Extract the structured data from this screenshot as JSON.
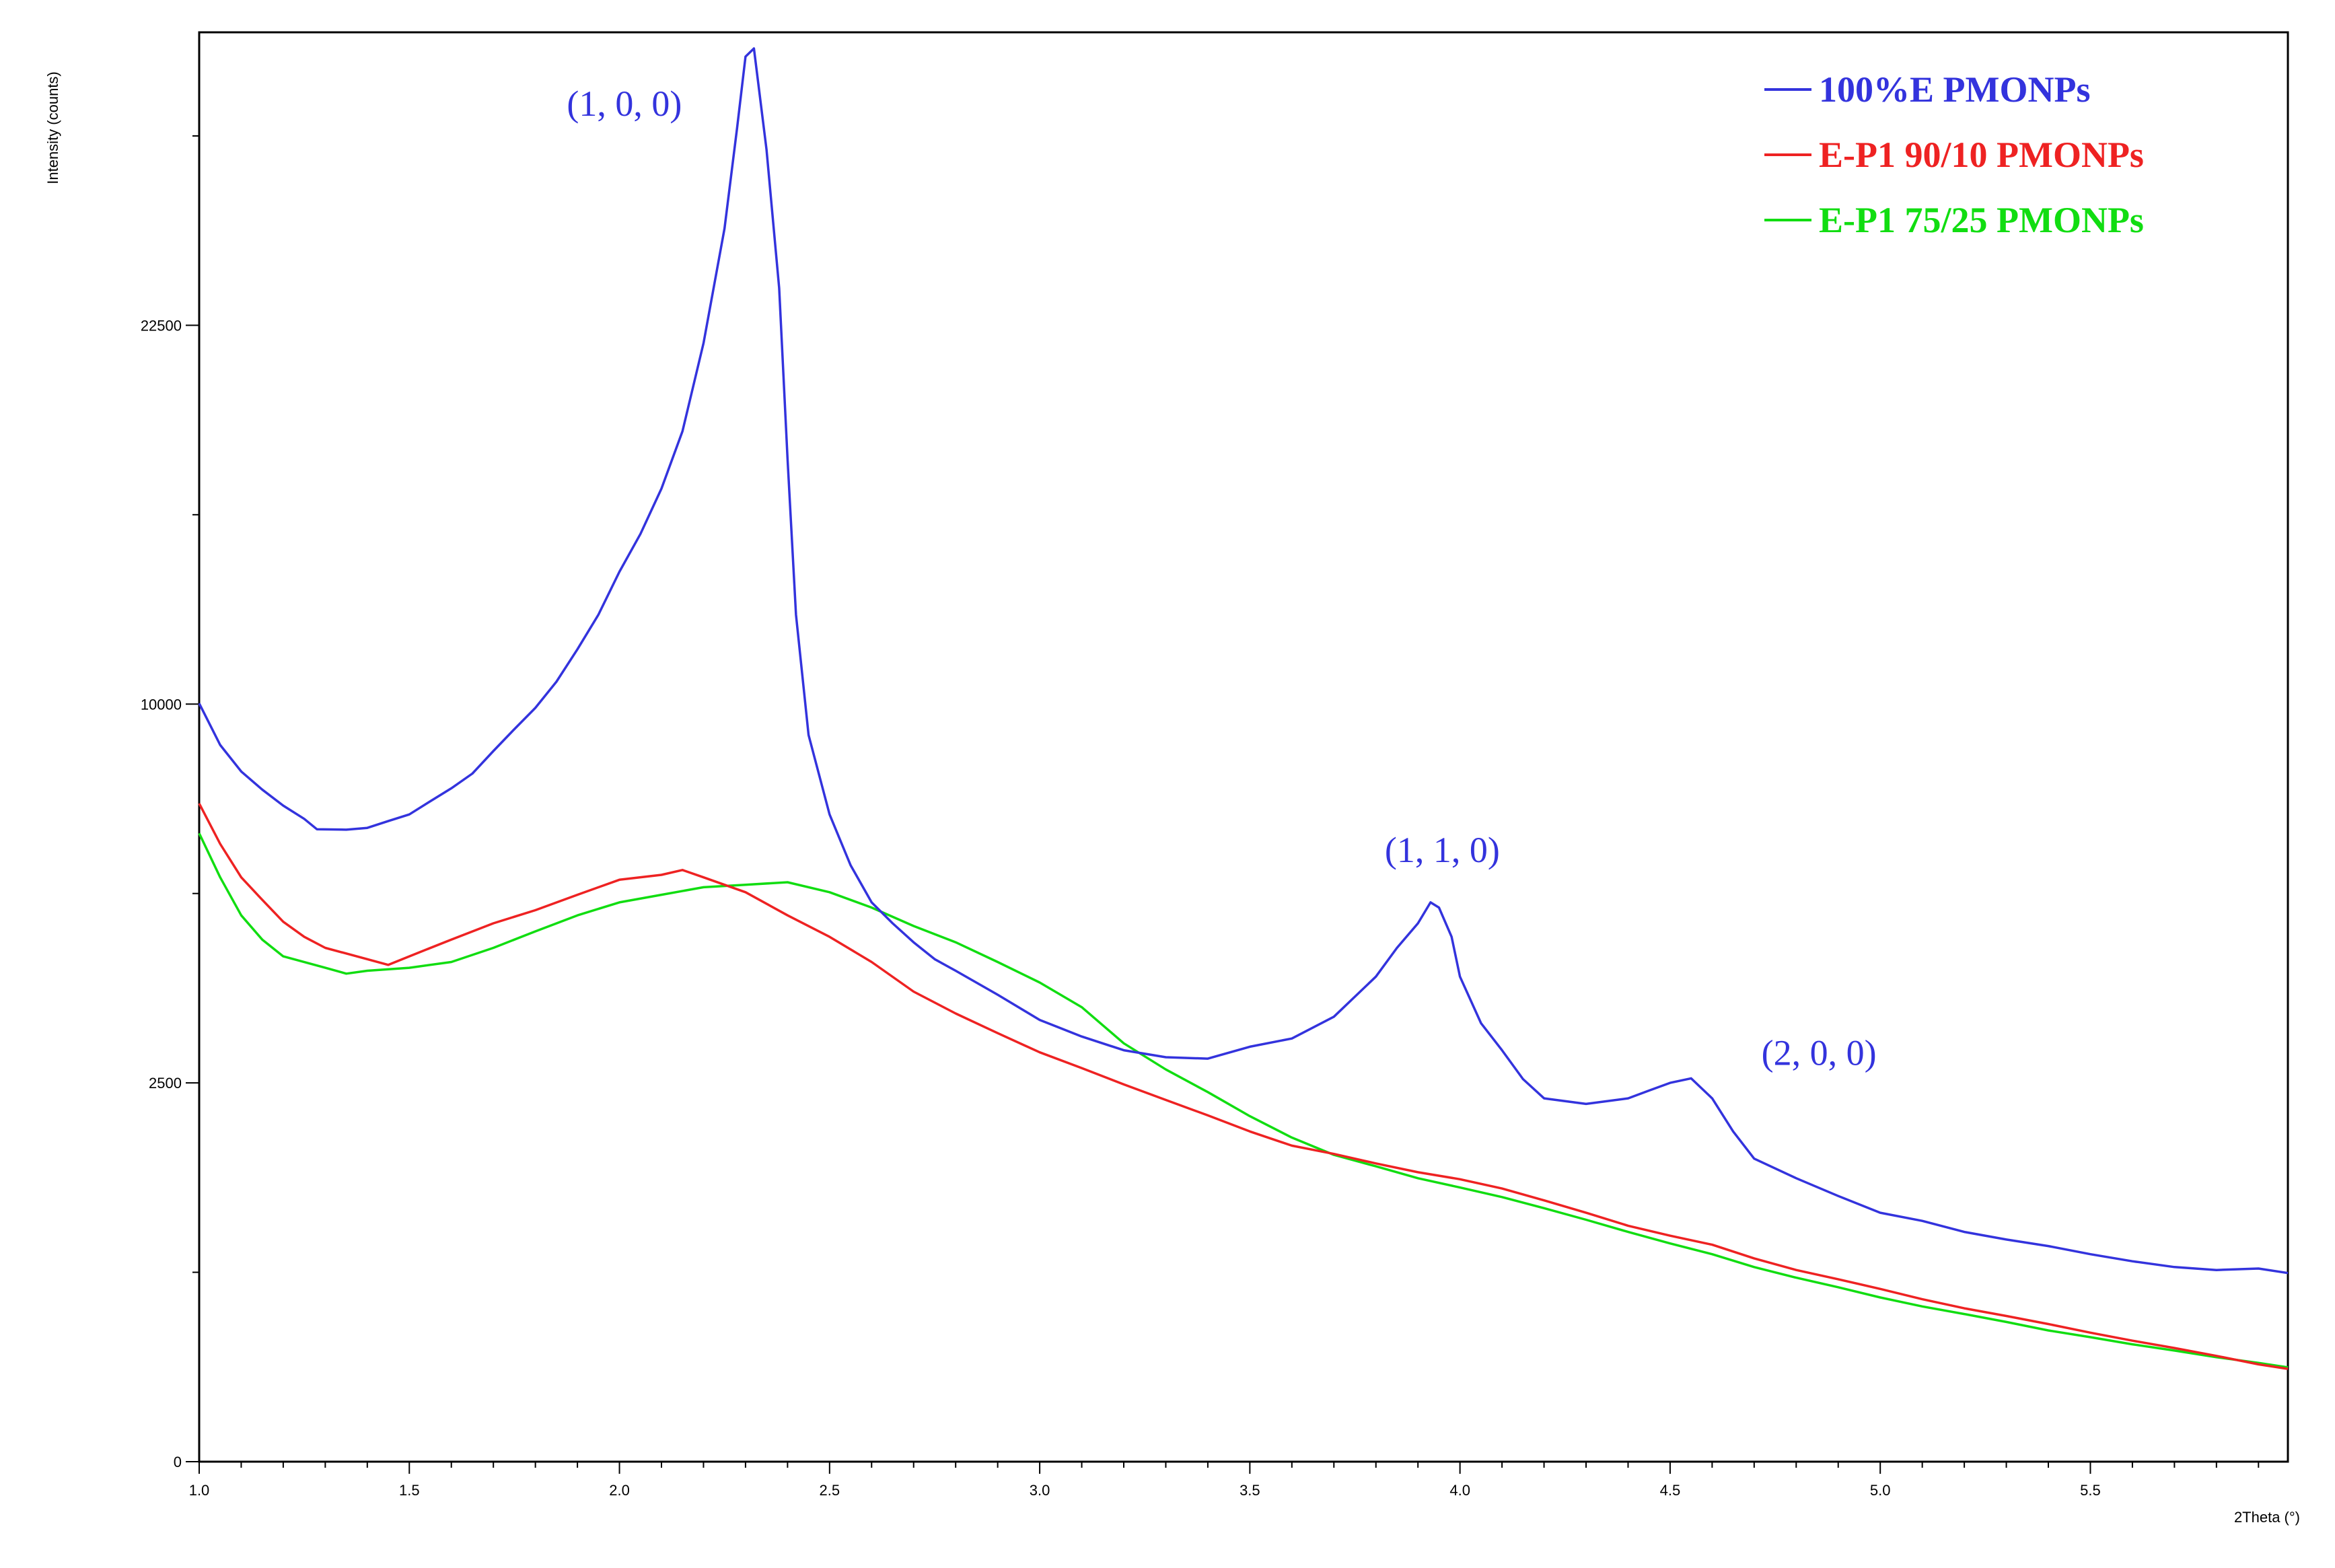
{
  "chart_data": {
    "type": "line",
    "title": "",
    "xlabel": "2Theta (°)",
    "ylabel": "Intensity (counts)",
    "xlim": [
      1.0,
      5.97
    ],
    "y_scale": "sqrt",
    "ylim": [
      0,
      35600
    ],
    "x_ticks": [
      1.0,
      1.5,
      2.0,
      2.5,
      3.0,
      3.5,
      4.0,
      4.5,
      5.0,
      5.5
    ],
    "x_tick_labels": [
      "1.0",
      "1.5",
      "2.0",
      "2.5",
      "3.0",
      "3.5",
      "4.0",
      "4.5",
      "5.0",
      "5.5"
    ],
    "y_ticks": [
      0,
      2500,
      10000,
      22500
    ],
    "y_tick_labels": [
      "0",
      "2500",
      "10000",
      "22500"
    ],
    "y_minor_ticks": [
      625,
      5625,
      15625,
      30625
    ],
    "grid": false,
    "legend_position": "top-right",
    "series": [
      {
        "name": "100%E PMONPs",
        "color": "#3333dd",
        "points": [
          [
            1.0,
            10020
          ],
          [
            1.05,
            8950
          ],
          [
            1.1,
            8300
          ],
          [
            1.15,
            7870
          ],
          [
            1.2,
            7500
          ],
          [
            1.25,
            7200
          ],
          [
            1.28,
            6970
          ],
          [
            1.35,
            6960
          ],
          [
            1.4,
            7000
          ],
          [
            1.45,
            7150
          ],
          [
            1.5,
            7300
          ],
          [
            1.55,
            7600
          ],
          [
            1.6,
            7900
          ],
          [
            1.65,
            8250
          ],
          [
            1.7,
            8800
          ],
          [
            1.75,
            9350
          ],
          [
            1.8,
            9900
          ],
          [
            1.85,
            10600
          ],
          [
            1.9,
            11500
          ],
          [
            1.95,
            12500
          ],
          [
            2.0,
            13800
          ],
          [
            2.05,
            15000
          ],
          [
            2.1,
            16500
          ],
          [
            2.15,
            18500
          ],
          [
            2.2,
            21800
          ],
          [
            2.25,
            26500
          ],
          [
            2.28,
            31000
          ],
          [
            2.3,
            34400
          ],
          [
            2.32,
            34800
          ],
          [
            2.35,
            30000
          ],
          [
            2.38,
            24000
          ],
          [
            2.4,
            17500
          ],
          [
            2.42,
            12500
          ],
          [
            2.45,
            9200
          ],
          [
            2.5,
            7300
          ],
          [
            2.55,
            6200
          ],
          [
            2.6,
            5450
          ],
          [
            2.65,
            5050
          ],
          [
            2.7,
            4700
          ],
          [
            2.75,
            4400
          ],
          [
            2.8,
            4200
          ],
          [
            2.9,
            3800
          ],
          [
            3.0,
            3400
          ],
          [
            3.1,
            3150
          ],
          [
            3.2,
            2950
          ],
          [
            3.3,
            2850
          ],
          [
            3.4,
            2830
          ],
          [
            3.5,
            3000
          ],
          [
            3.6,
            3120
          ],
          [
            3.7,
            3450
          ],
          [
            3.8,
            4100
          ],
          [
            3.85,
            4600
          ],
          [
            3.9,
            5050
          ],
          [
            3.93,
            5450
          ],
          [
            3.95,
            5350
          ],
          [
            3.98,
            4800
          ],
          [
            4.0,
            4100
          ],
          [
            4.05,
            3350
          ],
          [
            4.1,
            2950
          ],
          [
            4.15,
            2550
          ],
          [
            4.2,
            2300
          ],
          [
            4.3,
            2230
          ],
          [
            4.4,
            2300
          ],
          [
            4.45,
            2400
          ],
          [
            4.5,
            2500
          ],
          [
            4.55,
            2560
          ],
          [
            4.6,
            2300
          ],
          [
            4.65,
            1900
          ],
          [
            4.7,
            1600
          ],
          [
            4.8,
            1400
          ],
          [
            4.9,
            1230
          ],
          [
            5.0,
            1080
          ],
          [
            5.1,
            1010
          ],
          [
            5.2,
            920
          ],
          [
            5.3,
            860
          ],
          [
            5.4,
            810
          ],
          [
            5.5,
            750
          ],
          [
            5.6,
            700
          ],
          [
            5.7,
            660
          ],
          [
            5.8,
            640
          ],
          [
            5.9,
            650
          ],
          [
            5.97,
            620
          ]
        ]
      },
      {
        "name": "E-P1 90/10 PMONPs",
        "color": "#ee2222",
        "points": [
          [
            1.0,
            7550
          ],
          [
            1.05,
            6650
          ],
          [
            1.1,
            5950
          ],
          [
            1.15,
            5500
          ],
          [
            1.2,
            5080
          ],
          [
            1.25,
            4800
          ],
          [
            1.3,
            4600
          ],
          [
            1.4,
            4400
          ],
          [
            1.45,
            4300
          ],
          [
            1.5,
            4450
          ],
          [
            1.6,
            4750
          ],
          [
            1.7,
            5050
          ],
          [
            1.8,
            5300
          ],
          [
            1.9,
            5600
          ],
          [
            2.0,
            5900
          ],
          [
            2.1,
            6000
          ],
          [
            2.15,
            6100
          ],
          [
            2.2,
            5950
          ],
          [
            2.3,
            5650
          ],
          [
            2.4,
            5200
          ],
          [
            2.5,
            4800
          ],
          [
            2.6,
            4350
          ],
          [
            2.7,
            3850
          ],
          [
            2.8,
            3500
          ],
          [
            2.9,
            3200
          ],
          [
            3.0,
            2920
          ],
          [
            3.1,
            2700
          ],
          [
            3.2,
            2480
          ],
          [
            3.3,
            2280
          ],
          [
            3.4,
            2090
          ],
          [
            3.5,
            1900
          ],
          [
            3.6,
            1740
          ],
          [
            3.7,
            1650
          ],
          [
            3.8,
            1550
          ],
          [
            3.9,
            1460
          ],
          [
            4.0,
            1390
          ],
          [
            4.1,
            1300
          ],
          [
            4.2,
            1190
          ],
          [
            4.3,
            1080
          ],
          [
            4.4,
            970
          ],
          [
            4.5,
            890
          ],
          [
            4.6,
            820
          ],
          [
            4.7,
            720
          ],
          [
            4.8,
            640
          ],
          [
            4.9,
            580
          ],
          [
            5.0,
            520
          ],
          [
            5.1,
            460
          ],
          [
            5.2,
            410
          ],
          [
            5.3,
            370
          ],
          [
            5.4,
            330
          ],
          [
            5.5,
            290
          ],
          [
            5.6,
            255
          ],
          [
            5.7,
            225
          ],
          [
            5.8,
            195
          ],
          [
            5.9,
            165
          ],
          [
            5.97,
            150
          ]
        ]
      },
      {
        "name": "E-P1 75/25 PMONPs",
        "color": "#11dd11",
        "points": [
          [
            1.0,
            6880
          ],
          [
            1.05,
            5950
          ],
          [
            1.1,
            5200
          ],
          [
            1.15,
            4750
          ],
          [
            1.2,
            4450
          ],
          [
            1.3,
            4250
          ],
          [
            1.35,
            4150
          ],
          [
            1.4,
            4200
          ],
          [
            1.5,
            4250
          ],
          [
            1.6,
            4350
          ],
          [
            1.7,
            4600
          ],
          [
            1.8,
            4900
          ],
          [
            1.9,
            5200
          ],
          [
            2.0,
            5450
          ],
          [
            2.1,
            5600
          ],
          [
            2.2,
            5750
          ],
          [
            2.3,
            5800
          ],
          [
            2.4,
            5850
          ],
          [
            2.5,
            5650
          ],
          [
            2.6,
            5350
          ],
          [
            2.7,
            5000
          ],
          [
            2.8,
            4700
          ],
          [
            2.9,
            4350
          ],
          [
            3.0,
            4000
          ],
          [
            3.1,
            3600
          ],
          [
            3.2,
            3050
          ],
          [
            3.3,
            2680
          ],
          [
            3.4,
            2380
          ],
          [
            3.5,
            2080
          ],
          [
            3.6,
            1830
          ],
          [
            3.7,
            1640
          ],
          [
            3.8,
            1520
          ],
          [
            3.9,
            1400
          ],
          [
            4.0,
            1310
          ],
          [
            4.1,
            1220
          ],
          [
            4.2,
            1120
          ],
          [
            4.3,
            1020
          ],
          [
            4.4,
            920
          ],
          [
            4.5,
            830
          ],
          [
            4.6,
            750
          ],
          [
            4.7,
            660
          ],
          [
            4.8,
            590
          ],
          [
            4.9,
            530
          ],
          [
            5.0,
            470
          ],
          [
            5.1,
            420
          ],
          [
            5.2,
            380
          ],
          [
            5.3,
            340
          ],
          [
            5.4,
            300
          ],
          [
            5.5,
            270
          ],
          [
            5.6,
            240
          ],
          [
            5.7,
            215
          ],
          [
            5.8,
            190
          ],
          [
            5.9,
            170
          ],
          [
            5.97,
            155
          ]
        ]
      }
    ],
    "annotations": [
      {
        "text": "(1, 0, 0)",
        "x": 2.3,
        "y": 34800,
        "color": "#3333dd"
      },
      {
        "text": "(1, 1, 0)",
        "x": 3.95,
        "y": 5450,
        "color": "#3333dd"
      },
      {
        "text": "(2, 0, 0)",
        "x": 4.55,
        "y": 2560,
        "color": "#3333dd"
      }
    ]
  }
}
